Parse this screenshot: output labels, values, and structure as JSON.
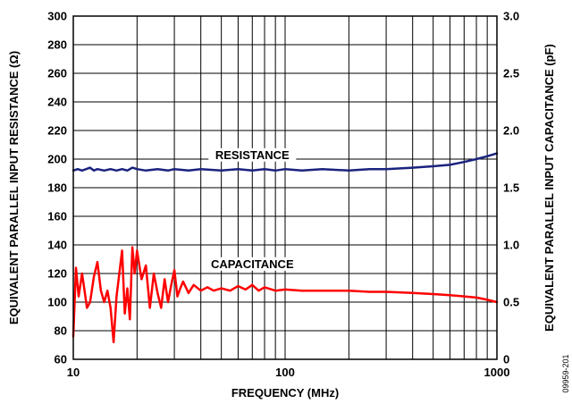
{
  "chart_data": {
    "type": "line",
    "title": "",
    "xlabel": "FREQUENCY (MHz)",
    "ylabel_left": "EQUIVALENT PARALLEL INPUT RESISTANCE (Ω)",
    "ylabel_right": "EQUIVALENT PARALLEL INPUT CAPACITANCE (pF)",
    "x_scale": "log",
    "xlim": [
      10,
      1000
    ],
    "ylim_left": [
      60,
      300
    ],
    "ylim_right": [
      0,
      3.0
    ],
    "x_ticks": [
      {
        "value": 10,
        "label": "10"
      },
      {
        "value": 100,
        "label": "100"
      },
      {
        "value": 1000,
        "label": "1000"
      }
    ],
    "y_left_ticks": [
      "60",
      "80",
      "100",
      "120",
      "140",
      "160",
      "180",
      "200",
      "220",
      "240",
      "260",
      "280",
      "300"
    ],
    "y_right_ticks": [
      "0",
      "0.5",
      "1.0",
      "1.5",
      "2.0",
      "2.5",
      "3.0"
    ],
    "grid": true,
    "series": [
      {
        "name": "RESISTANCE",
        "axis": "left",
        "color": "#1a237e",
        "x": [
          10,
          10.5,
          11,
          11.5,
          12,
          12.5,
          13,
          14,
          15,
          16,
          17,
          18,
          19,
          20,
          22,
          25,
          28,
          30,
          35,
          40,
          50,
          60,
          70,
          80,
          90,
          100,
          120,
          150,
          200,
          250,
          300,
          400,
          500,
          600,
          700,
          800,
          900,
          1000
        ],
        "values": [
          192,
          193,
          192,
          193,
          194,
          192,
          193,
          192,
          193,
          192,
          193,
          192,
          194,
          193,
          192,
          193,
          192,
          193,
          192,
          193,
          192,
          193,
          192,
          193,
          192,
          193,
          192,
          193,
          192,
          193,
          193,
          194,
          195,
          196,
          198,
          200,
          202,
          204
        ]
      },
      {
        "name": "CAPACITANCE",
        "axis": "right",
        "color": "#ff0000",
        "x": [
          10,
          10.3,
          10.6,
          11,
          11.3,
          11.6,
          12,
          12.5,
          13,
          13.5,
          14,
          14.5,
          15,
          15.5,
          16,
          16.5,
          17,
          17.5,
          18,
          18.5,
          19,
          19.5,
          20,
          21,
          22,
          23,
          24,
          25,
          26,
          27,
          28,
          29,
          30,
          31,
          32,
          33,
          35,
          37,
          40,
          43,
          46,
          50,
          55,
          60,
          65,
          70,
          75,
          80,
          90,
          100,
          120,
          150,
          200,
          250,
          300,
          400,
          500,
          600,
          700,
          800,
          900,
          1000
        ],
        "values": [
          0.2,
          0.8,
          0.55,
          0.75,
          0.6,
          0.45,
          0.5,
          0.72,
          0.85,
          0.6,
          0.5,
          0.6,
          0.45,
          0.15,
          0.55,
          0.75,
          0.95,
          0.4,
          0.62,
          0.35,
          0.98,
          0.75,
          0.95,
          0.7,
          0.82,
          0.45,
          0.75,
          0.58,
          0.45,
          0.7,
          0.5,
          0.65,
          0.78,
          0.55,
          0.62,
          0.68,
          0.58,
          0.65,
          0.6,
          0.63,
          0.6,
          0.62,
          0.6,
          0.64,
          0.61,
          0.65,
          0.6,
          0.63,
          0.6,
          0.61,
          0.6,
          0.6,
          0.6,
          0.59,
          0.59,
          0.58,
          0.57,
          0.56,
          0.55,
          0.54,
          0.52,
          0.5
        ]
      }
    ],
    "annotations": [
      {
        "text": "RESISTANCE",
        "series": "RESISTANCE"
      },
      {
        "text": "CAPACITANCE",
        "series": "CAPACITANCE"
      }
    ],
    "figure_id": "09959-201"
  }
}
